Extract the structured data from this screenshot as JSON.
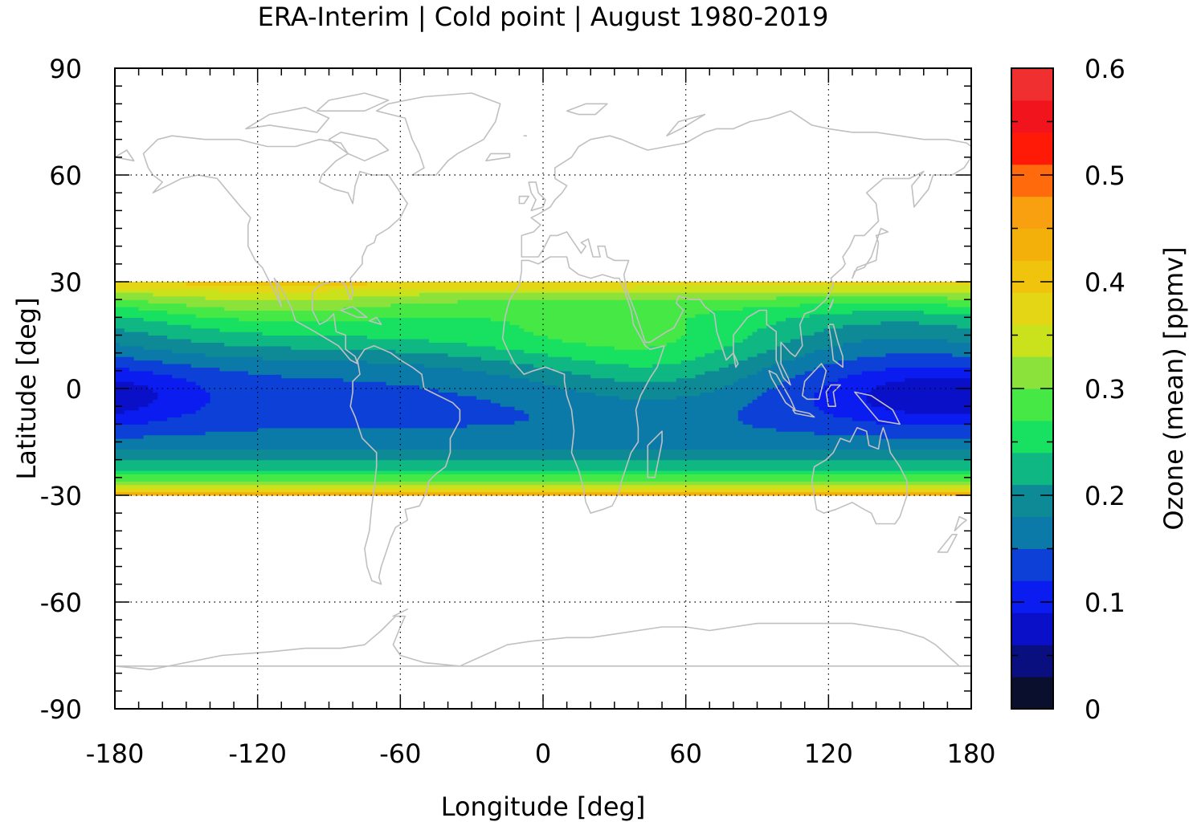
{
  "chart_data": {
    "type": "heatmap",
    "title": "ERA-Interim | Cold point | August 1980-2019",
    "xlabel": "Longitude [deg]",
    "ylabel": "Latitude [deg]",
    "colorbar_label": "Ozone (mean) [ppmv]",
    "xlim": [
      -180,
      180
    ],
    "ylim": [
      -90,
      90
    ],
    "xticks": [
      -180,
      -120,
      -60,
      0,
      60,
      120,
      180
    ],
    "yticks": [
      90,
      60,
      30,
      0,
      -30,
      -60,
      -90
    ],
    "xtick_labels": [
      "-180",
      "-120",
      "-60",
      "0",
      "60",
      "120",
      "180"
    ],
    "ytick_labels": [
      "90",
      "60",
      "30",
      "0",
      "-30",
      "-60",
      "-90"
    ],
    "grid": true,
    "data_lat_range": [
      -30,
      30
    ],
    "colorbar": {
      "range": [
        0,
        0.6
      ],
      "step": 0.03,
      "tick_labels": [
        "0.6",
        "0.5",
        "0.4",
        "0.3",
        "0.2",
        "0.1",
        "0"
      ],
      "ticks": [
        0.6,
        0.5,
        0.4,
        0.3,
        0.2,
        0.1,
        0
      ],
      "colors": [
        "#0b0f2e",
        "#0a0f7f",
        "#0a10c8",
        "#0a1cf0",
        "#0c40d6",
        "#0b7aa8",
        "#0e8a96",
        "#0fb783",
        "#18e060",
        "#46e846",
        "#8ae23a",
        "#c9e21c",
        "#e4d614",
        "#f0c40c",
        "#f4b00a",
        "#f8a010",
        "#ff6a0c",
        "#ff1a08",
        "#f2141c",
        "#f03030",
        "#f08080",
        "#fccaca"
      ]
    },
    "background_color": "#ffffff",
    "coastline_color": "#c0c0c0",
    "grid_color": "#000000"
  }
}
